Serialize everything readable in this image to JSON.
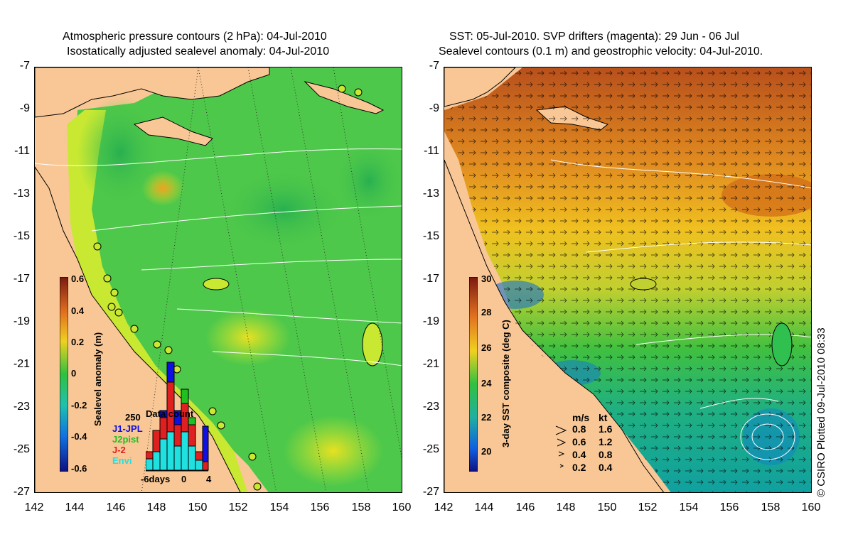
{
  "left_panel": {
    "title_line1": "Atmospheric pressure contours (2 hPa): 04-Jul-2010",
    "title_line2": "Isostatically adjusted sealevel anomaly: 04-Jul-2010",
    "colorbar_label": "Sealevel anomaly (m)",
    "colorbar_ticks": [
      "0.6",
      "0.4",
      "0.2",
      "0",
      "-0.2",
      "-0.4",
      "-0.6"
    ],
    "inset": {
      "count_value": "250",
      "title": "Data count",
      "missions": [
        "J1-JPL",
        "J2pist",
        "J-2",
        "Envi"
      ],
      "mission_colors": [
        "#1010e0",
        "#20c020",
        "#e02020",
        "#20e0e0"
      ],
      "xtick_label_1": "-6days",
      "xtick_label_2": "0",
      "xtick_label_3": "4"
    }
  },
  "right_panel": {
    "title_line1": "SST: 05-Jul-2010. SVP drifters (magenta): 29 Jun - 06 Jul",
    "title_line2": "Sealevel contours (0.1 m) and geostrophic velocity: 04-Jul-2010.",
    "colorbar_label": "3-day SST composite (deg C)",
    "colorbar_ticks": [
      "30",
      "28",
      "26",
      "24",
      "22",
      "20"
    ],
    "velocity_legend": {
      "header_ms": "m/s",
      "header_kt": "kt",
      "rows": [
        {
          "ms": "0.8",
          "kt": "1.6"
        },
        {
          "ms": "0.6",
          "kt": "1.2"
        },
        {
          "ms": "0.4",
          "kt": "0.8"
        },
        {
          "ms": "0.2",
          "kt": "0.4"
        }
      ]
    }
  },
  "axes": {
    "lat_ticks": [
      "-7",
      "-9",
      "-11",
      "-13",
      "-15",
      "-17",
      "-19",
      "-21",
      "-23",
      "-25",
      "-27"
    ],
    "lon_ticks": [
      "142",
      "144",
      "146",
      "148",
      "150",
      "152",
      "154",
      "156",
      "158",
      "160"
    ]
  },
  "credit": "© CSIRO Plotted 09-Jul-2010 08:33",
  "colors": {
    "land": "#f9c795",
    "sla_green": "#4ec84a",
    "sla_yellow": "#c8e832",
    "sst_orange": "#e88a20",
    "sst_green": "#30c050"
  }
}
